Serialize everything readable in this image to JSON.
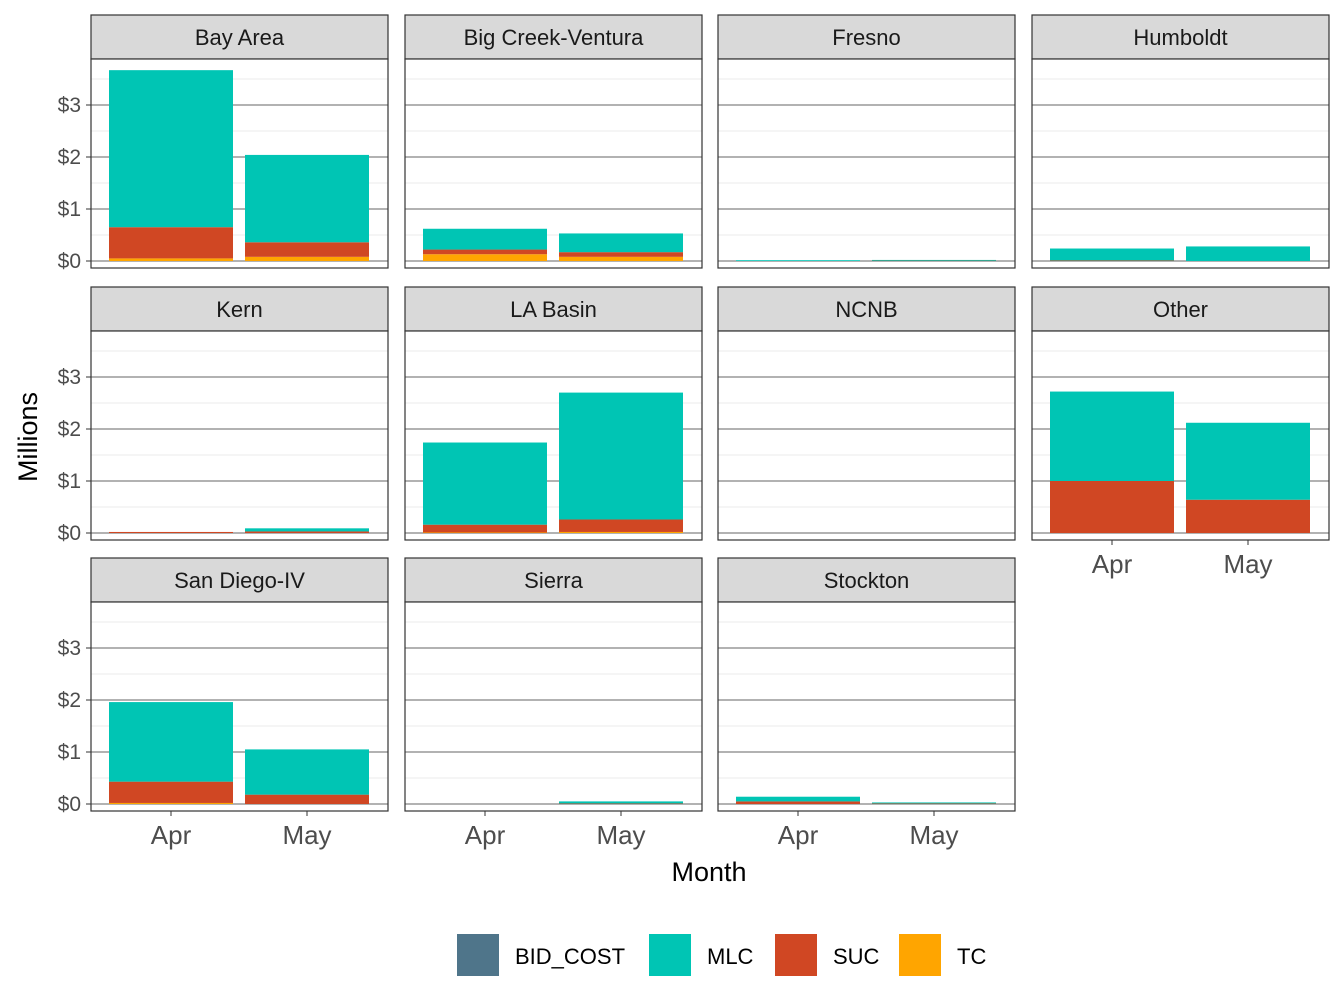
{
  "chart_data": {
    "type": "bar",
    "stacked": true,
    "faceted": true,
    "xlabel": "Month",
    "ylabel": "Millions",
    "categories": [
      "Apr",
      "May"
    ],
    "y_ticks": [
      "$0",
      "$1",
      "$2",
      "$3"
    ],
    "ylim": [
      0,
      3.95
    ],
    "grid": true,
    "legend_position": "bottom",
    "series": [
      {
        "name": "BID_COST",
        "color": "#4f758a"
      },
      {
        "name": "MLC",
        "color": "#00c5b4"
      },
      {
        "name": "SUC",
        "color": "#d04723"
      },
      {
        "name": "TC",
        "color": "#ffa500"
      }
    ],
    "panels": [
      {
        "name": "Bay Area",
        "values": {
          "Apr": {
            "BID_COST": 0,
            "TC": 0.05,
            "SUC": 0.6,
            "MLC": 3.02
          },
          "May": {
            "BID_COST": 0,
            "TC": 0.08,
            "SUC": 0.28,
            "MLC": 1.68
          }
        }
      },
      {
        "name": "Big Creek-Ventura",
        "values": {
          "Apr": {
            "BID_COST": 0,
            "TC": 0.13,
            "SUC": 0.09,
            "MLC": 0.4
          },
          "May": {
            "BID_COST": 0,
            "TC": 0.08,
            "SUC": 0.09,
            "MLC": 0.36
          }
        }
      },
      {
        "name": "Fresno",
        "values": {
          "Apr": {
            "BID_COST": 0,
            "TC": 0,
            "SUC": 0,
            "MLC": 0.005
          },
          "May": {
            "BID_COST": 0,
            "TC": 0,
            "SUC": 0.005,
            "MLC": 0.01
          }
        }
      },
      {
        "name": "Humboldt",
        "values": {
          "Apr": {
            "BID_COST": 0,
            "TC": 0,
            "SUC": 0.01,
            "MLC": 0.23
          },
          "May": {
            "BID_COST": 0,
            "TC": 0,
            "SUC": 0,
            "MLC": 0.28
          }
        }
      },
      {
        "name": "Kern",
        "values": {
          "Apr": {
            "BID_COST": 0,
            "TC": 0,
            "SUC": 0.02,
            "MLC": 0
          },
          "May": {
            "BID_COST": 0,
            "TC": 0,
            "SUC": 0.03,
            "MLC": 0.06
          }
        }
      },
      {
        "name": "LA Basin",
        "values": {
          "Apr": {
            "BID_COST": 0,
            "TC": 0.01,
            "SUC": 0.15,
            "MLC": 1.58
          },
          "May": {
            "BID_COST": 0,
            "TC": 0.02,
            "SUC": 0.24,
            "MLC": 2.44
          }
        }
      },
      {
        "name": "NCNB",
        "values": {
          "Apr": {
            "BID_COST": 0,
            "TC": 0,
            "SUC": 0,
            "MLC": 0
          },
          "May": {
            "BID_COST": 0,
            "TC": 0,
            "SUC": 0,
            "MLC": 0
          }
        }
      },
      {
        "name": "Other",
        "values": {
          "Apr": {
            "BID_COST": 0,
            "TC": 0,
            "SUC": 1.0,
            "MLC": 1.72
          },
          "May": {
            "BID_COST": 0,
            "TC": 0,
            "SUC": 0.64,
            "MLC": 1.48
          }
        }
      },
      {
        "name": "San Diego-IV",
        "values": {
          "Apr": {
            "BID_COST": 0,
            "TC": 0.02,
            "SUC": 0.41,
            "MLC": 1.53
          },
          "May": {
            "BID_COST": 0,
            "TC": 0,
            "SUC": 0.18,
            "MLC": 0.87
          }
        }
      },
      {
        "name": "Sierra",
        "values": {
          "Apr": {
            "BID_COST": 0,
            "TC": 0,
            "SUC": 0,
            "MLC": 0
          },
          "May": {
            "BID_COST": 0,
            "TC": 0,
            "SUC": 0.01,
            "MLC": 0.04
          }
        }
      },
      {
        "name": "Stockton",
        "values": {
          "Apr": {
            "BID_COST": 0,
            "TC": 0,
            "SUC": 0.05,
            "MLC": 0.09
          },
          "May": {
            "BID_COST": 0,
            "TC": 0,
            "SUC": 0.01,
            "MLC": 0.02
          }
        }
      }
    ]
  }
}
